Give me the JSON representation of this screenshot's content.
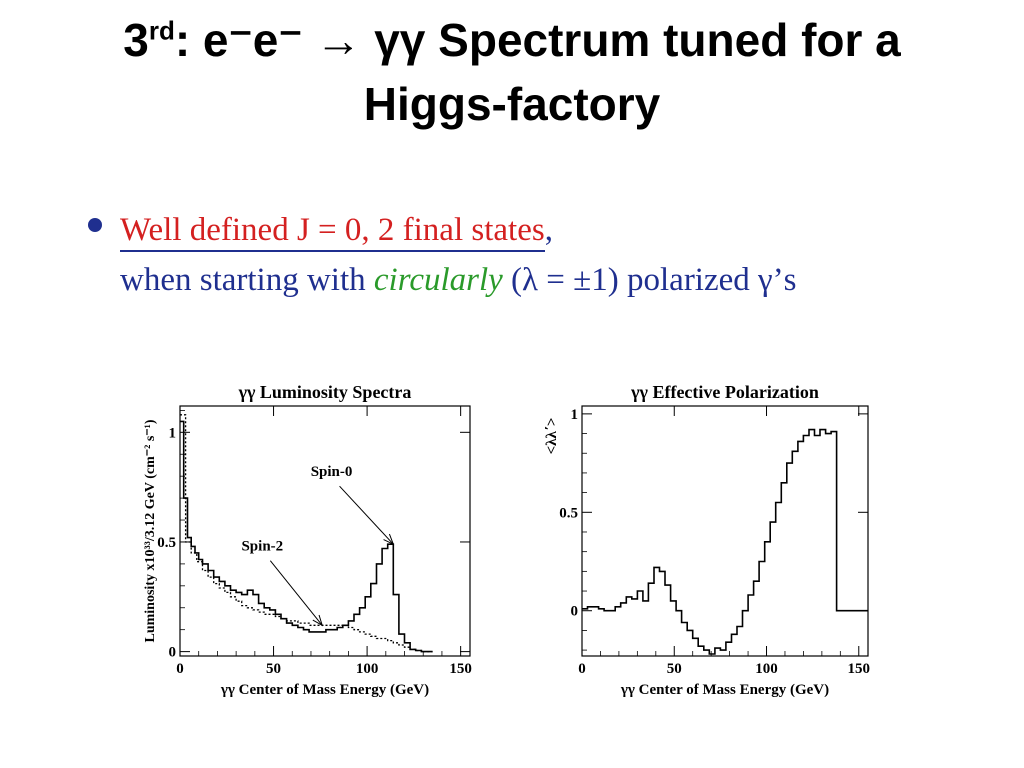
{
  "title": {
    "part1": "3",
    "sup": "rd",
    "part2": ": e⁻e⁻ → γγ Spectrum tuned for a",
    "line2": "Higgs-factory"
  },
  "bullet": {
    "red_part": "Well defined J = 0, 2 final states",
    "comma": ",",
    "blue_a": "when starting with ",
    "green": "circularly",
    "blue_b": " (λ = ±1) polarized γ’s"
  },
  "chart_data": [
    {
      "type": "line",
      "title": "γγ Luminosity Spectra",
      "xlabel": "γγ Center of Mass Energy (GeV)",
      "ylabel": "Luminosity x10³³/3.12 GeV (cm⁻² s⁻¹)",
      "xlim": [
        0,
        155
      ],
      "ylim": [
        -0.02,
        1.12
      ],
      "xticks": [
        0,
        50,
        100,
        150
      ],
      "xtick_labels": [
        "0",
        "50",
        "100",
        "150"
      ],
      "yticks": [
        0,
        0.5,
        1
      ],
      "ytick_labels": [
        "0",
        "0.5",
        "1"
      ],
      "grid": false,
      "annotations": [
        {
          "text": "Spin-0",
          "label_x": 81,
          "label_y": 0.8,
          "tip_x": 114,
          "tip_y": 0.49
        },
        {
          "text": "Spin-2",
          "label_x": 44,
          "label_y": 0.46,
          "tip_x": 76,
          "tip_y": 0.12
        }
      ],
      "series": [
        {
          "style": "solid-step",
          "x": [
            0,
            2,
            4,
            6,
            8,
            10,
            12,
            15,
            18,
            21,
            24,
            27,
            30,
            33,
            36,
            39,
            42,
            45,
            48,
            51,
            54,
            57,
            60,
            63,
            66,
            69,
            72,
            75,
            78,
            81,
            84,
            87,
            90,
            93,
            96,
            99,
            102,
            105,
            108,
            111,
            114,
            117,
            120,
            123,
            126,
            129,
            132
          ],
          "values": [
            1.05,
            0.7,
            0.52,
            0.48,
            0.45,
            0.42,
            0.4,
            0.37,
            0.34,
            0.32,
            0.3,
            0.28,
            0.27,
            0.26,
            0.28,
            0.26,
            0.22,
            0.2,
            0.19,
            0.17,
            0.15,
            0.13,
            0.12,
            0.11,
            0.1,
            0.09,
            0.09,
            0.09,
            0.1,
            0.1,
            0.11,
            0.12,
            0.14,
            0.17,
            0.2,
            0.25,
            0.31,
            0.4,
            0.47,
            0.49,
            0.26,
            0.08,
            0.04,
            0.01,
            0.005,
            0,
            0
          ]
        },
        {
          "style": "dotted-step",
          "x": [
            0,
            3,
            6,
            9,
            12,
            15,
            18,
            21,
            24,
            27,
            30,
            33,
            36,
            39,
            42,
            45,
            48,
            51,
            54,
            57,
            60,
            63,
            66,
            69,
            72,
            75,
            78,
            81,
            84,
            87,
            90,
            93,
            96,
            99,
            102,
            105,
            108,
            111,
            114,
            117,
            120,
            123,
            126,
            129,
            132
          ],
          "values": [
            1.08,
            0.5,
            0.45,
            0.41,
            0.37,
            0.34,
            0.31,
            0.29,
            0.27,
            0.25,
            0.23,
            0.21,
            0.2,
            0.19,
            0.18,
            0.17,
            0.17,
            0.16,
            0.15,
            0.14,
            0.14,
            0.13,
            0.13,
            0.12,
            0.12,
            0.12,
            0.12,
            0.12,
            0.12,
            0.12,
            0.11,
            0.1,
            0.09,
            0.08,
            0.07,
            0.06,
            0.06,
            0.05,
            0.04,
            0.03,
            0.02,
            0.01,
            0.005,
            0,
            0
          ]
        }
      ]
    },
    {
      "type": "line",
      "title": "γγ Effective Polarization",
      "xlabel": "γγ Center of Mass Energy (GeV)",
      "ylabel": "<λλ΄>",
      "xlim": [
        0,
        155
      ],
      "ylim": [
        -0.23,
        1.04
      ],
      "xticks": [
        0,
        50,
        100,
        150
      ],
      "xtick_labels": [
        "0",
        "50",
        "100",
        "150"
      ],
      "yticks": [
        0,
        0.5,
        1
      ],
      "ytick_labels": [
        "0",
        "0.5",
        "1"
      ],
      "grid": false,
      "series": [
        {
          "style": "solid-step",
          "x": [
            0,
            3,
            6,
            9,
            12,
            15,
            18,
            21,
            24,
            27,
            30,
            33,
            36,
            39,
            42,
            45,
            48,
            51,
            54,
            57,
            60,
            63,
            66,
            69,
            72,
            75,
            78,
            81,
            84,
            87,
            90,
            93,
            96,
            99,
            102,
            105,
            108,
            111,
            114,
            117,
            120,
            123,
            126,
            129,
            132,
            135,
            138,
            141,
            144,
            147,
            150,
            153
          ],
          "values": [
            0.01,
            0.02,
            0.02,
            0.01,
            0,
            0,
            0.02,
            0.04,
            0.07,
            0.06,
            0.1,
            0.05,
            0.14,
            0.22,
            0.2,
            0.13,
            0.05,
            0,
            -0.06,
            -0.1,
            -0.14,
            -0.18,
            -0.2,
            -0.22,
            -0.19,
            -0.2,
            -0.16,
            -0.12,
            -0.08,
            0,
            0.08,
            0.15,
            0.25,
            0.35,
            0.45,
            0.55,
            0.65,
            0.75,
            0.81,
            0.86,
            0.89,
            0.92,
            0.89,
            0.92,
            0.9,
            0.91,
            0,
            0,
            0,
            0,
            0,
            0
          ]
        }
      ]
    }
  ]
}
